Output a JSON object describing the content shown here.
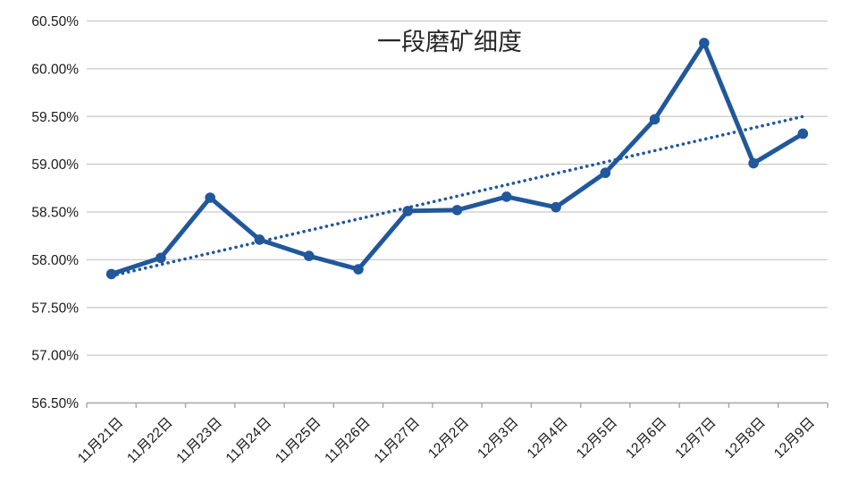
{
  "chart_data": {
    "type": "line",
    "title": "一段磨矿细度",
    "categories": [
      "11月21日",
      "11月22日",
      "11月23日",
      "11月24日",
      "11月25日",
      "11月26日",
      "11月27日",
      "12月2日",
      "12月3日",
      "12月4日",
      "12月5日",
      "12月6日",
      "12月7日",
      "12月8日",
      "12月9日"
    ],
    "series": [
      {
        "name": "一段磨矿细度",
        "values": [
          57.85,
          58.02,
          58.65,
          58.21,
          58.04,
          57.9,
          58.51,
          58.52,
          58.66,
          58.55,
          58.91,
          59.47,
          60.27,
          59.01,
          59.32
        ]
      }
    ],
    "trendline": {
      "style": "dotted",
      "start": 57.83,
      "end": 59.5
    },
    "ylim": [
      56.5,
      60.5
    ],
    "ytick_step": 0.5,
    "ytick_labels": [
      "56.50%",
      "57.00%",
      "57.50%",
      "58.00%",
      "58.50%",
      "59.00%",
      "59.50%",
      "60.00%",
      "60.50%"
    ],
    "grid": "horizontal",
    "legend": "none",
    "colors": {
      "series": "#21579b",
      "trendline": "#21579b",
      "gridline": "#c9c9c9",
      "axis": "#a6a6a6",
      "label": "#1a1a1a",
      "title": "#262626"
    }
  }
}
